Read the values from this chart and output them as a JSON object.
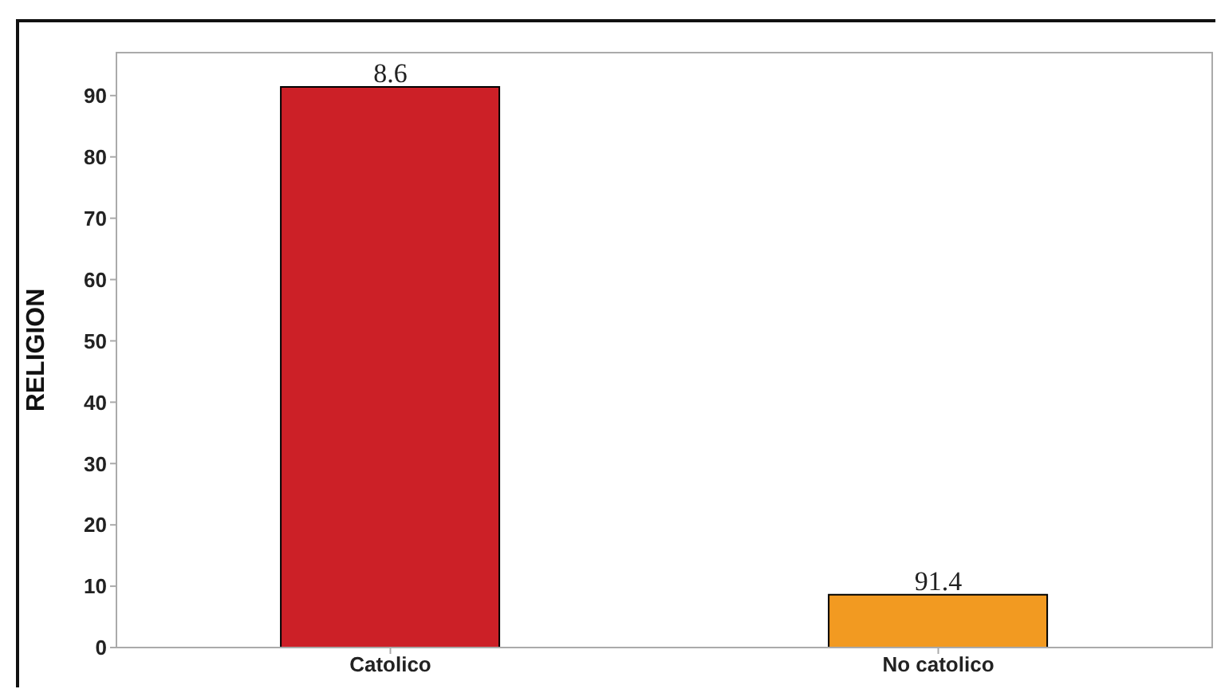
{
  "chart_data": {
    "type": "bar",
    "ylabel": "RELIGION",
    "categories": [
      "Catolico",
      "No catolico"
    ],
    "values": [
      91.4,
      8.6
    ],
    "colors": [
      "#cc2027",
      "#f29a21"
    ],
    "annotations": [
      {
        "text": "8.6",
        "x": "Catolico",
        "y": 91.4
      },
      {
        "text": "91.4",
        "x": "No catolico",
        "y": 8.6
      }
    ],
    "ylim": [
      0,
      97
    ],
    "yticks": [
      0,
      10,
      20,
      30,
      40,
      50,
      60,
      70,
      80,
      90
    ],
    "grid": false
  }
}
